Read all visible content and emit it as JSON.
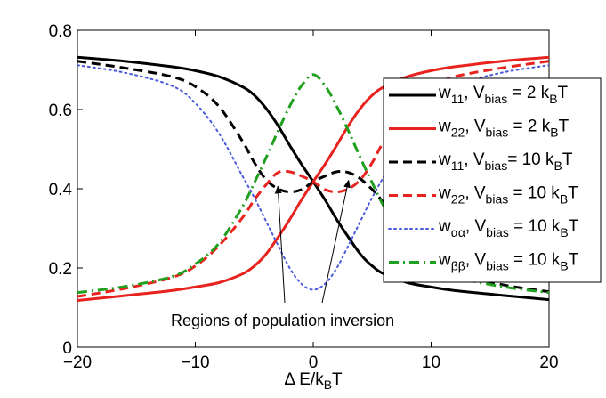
{
  "chart_data": {
    "type": "line",
    "title": "",
    "xlabel": "Δ E/k_B T",
    "ylabel": "",
    "xlim": [
      -20,
      20
    ],
    "ylim": [
      0,
      0.8
    ],
    "x_ticks": [
      "−20",
      "−10",
      "0",
      "10",
      "20"
    ],
    "x_tick_values": [
      -20,
      -10,
      0,
      10,
      20
    ],
    "y_ticks": [
      "0",
      "0.2",
      "0.4",
      "0.6",
      "0.8"
    ],
    "y_tick_values": [
      0,
      0.2,
      0.4,
      0.6,
      0.8
    ],
    "x": [
      -20,
      -16,
      -12,
      -10,
      -8,
      -6,
      -5,
      -4,
      -3,
      -2,
      -1,
      0,
      1,
      2,
      3,
      4,
      5,
      6,
      8,
      10,
      12,
      16,
      20
    ],
    "series": [
      {
        "name": "w11, Vbias = 2 kBT",
        "legend": {
          "base": "w",
          "sub1": "11",
          "mid": ", V",
          "sub2": "bias",
          "rest": " = 2 k",
          "sub3": "B",
          "tail": "T"
        },
        "color": "#000000",
        "style": "solid",
        "width": 3,
        "values": [
          0.732,
          0.722,
          0.708,
          0.698,
          0.683,
          0.657,
          0.636,
          0.603,
          0.56,
          0.51,
          0.462,
          0.418,
          0.372,
          0.322,
          0.277,
          0.235,
          0.205,
          0.185,
          0.163,
          0.152,
          0.143,
          0.131,
          0.12
        ]
      },
      {
        "name": "w22, Vbias = 2 kBT",
        "legend": {
          "base": "w",
          "sub1": "22",
          "mid": ", V",
          "sub2": "bias",
          "rest": " = 2 k",
          "sub3": "B",
          "tail": "T"
        },
        "color": "#e8231f",
        "style": "solid",
        "width": 3,
        "values": [
          0.118,
          0.13,
          0.143,
          0.152,
          0.163,
          0.185,
          0.205,
          0.235,
          0.277,
          0.322,
          0.372,
          0.418,
          0.462,
          0.51,
          0.56,
          0.603,
          0.636,
          0.657,
          0.683,
          0.698,
          0.708,
          0.722,
          0.732
        ]
      },
      {
        "name": "w11, Vbias = 10 kBT",
        "legend": {
          "base": "w",
          "sub1": "11",
          "mid": ", V",
          "sub2": "bias",
          "rest": "= 10 k",
          "sub3": "B",
          "tail": "T"
        },
        "color": "#000000",
        "style": "dashed",
        "width": 3,
        "values": [
          0.722,
          0.705,
          0.683,
          0.658,
          0.608,
          0.52,
          0.466,
          0.423,
          0.4,
          0.392,
          0.398,
          0.418,
          0.432,
          0.443,
          0.441,
          0.425,
          0.398,
          0.362,
          0.27,
          0.215,
          0.187,
          0.158,
          0.14
        ]
      },
      {
        "name": "w22, Vbias = 10 kBT",
        "legend": {
          "base": "w",
          "sub1": "22",
          "mid": ", V",
          "sub2": "bias",
          "rest": " = 10 k",
          "sub3": "B",
          "tail": "T"
        },
        "color": "#e8231f",
        "style": "dashed",
        "width": 3,
        "values": [
          0.128,
          0.148,
          0.176,
          0.205,
          0.256,
          0.327,
          0.372,
          0.41,
          0.441,
          0.443,
          0.432,
          0.418,
          0.398,
          0.392,
          0.4,
          0.423,
          0.466,
          0.52,
          0.608,
          0.658,
          0.683,
          0.705,
          0.722
        ]
      },
      {
        "name": "wαα, Vbias = 10 kBT",
        "legend": {
          "base": "w",
          "sub1": "αα",
          "mid": ", V",
          "sub2": "bias",
          "rest": " = 10 k",
          "sub3": "B",
          "tail": "T"
        },
        "color": "#4a5adb",
        "style": "dotted",
        "width": 2,
        "values": [
          0.712,
          0.693,
          0.66,
          0.616,
          0.54,
          0.432,
          0.378,
          0.318,
          0.258,
          0.2,
          0.16,
          0.145,
          0.16,
          0.2,
          0.258,
          0.318,
          0.378,
          0.432,
          0.54,
          0.616,
          0.66,
          0.693,
          0.712
        ]
      },
      {
        "name": "wββ, Vbias = 10 kBT",
        "legend": {
          "base": "w",
          "sub1": "ββ",
          "mid": ", V",
          "sub2": "bias",
          "rest": " = 10 k",
          "sub3": "B",
          "tail": "T"
        },
        "color": "#1fa01f",
        "style": "dashdot",
        "width": 3,
        "values": [
          0.138,
          0.153,
          0.178,
          0.21,
          0.262,
          0.355,
          0.415,
          0.478,
          0.545,
          0.608,
          0.66,
          0.688,
          0.66,
          0.608,
          0.545,
          0.478,
          0.415,
          0.355,
          0.262,
          0.21,
          0.178,
          0.153,
          0.138
        ]
      }
    ],
    "annotation": {
      "text": "Regions of population inversion",
      "arrow_targets": [
        {
          "x": -3,
          "y": 0.415
        },
        {
          "x": 3,
          "y": 0.43
        }
      ]
    },
    "legend_location": "right"
  }
}
